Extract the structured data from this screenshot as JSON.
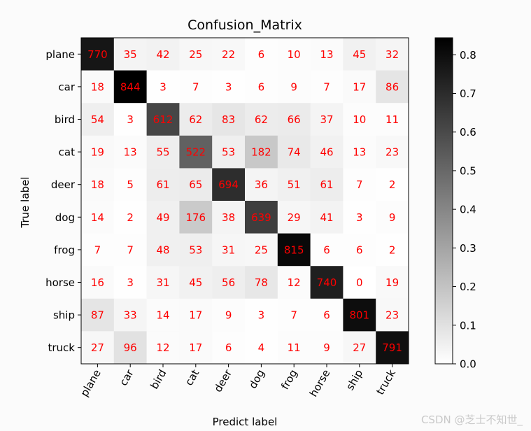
{
  "chart_data": {
    "type": "heatmap",
    "title": "Confusion_Matrix",
    "xlabel": "Predict label",
    "ylabel": "True label",
    "x_categories": [
      "plane",
      "car",
      "bird",
      "cat",
      "deer",
      "dog",
      "frog",
      "horse",
      "ship",
      "truck"
    ],
    "y_categories": [
      "plane",
      "car",
      "bird",
      "cat",
      "deer",
      "dog",
      "frog",
      "horse",
      "ship",
      "truck"
    ],
    "values": [
      [
        770,
        35,
        42,
        25,
        22,
        6,
        10,
        13,
        45,
        32
      ],
      [
        18,
        844,
        3,
        7,
        3,
        6,
        9,
        7,
        17,
        86
      ],
      [
        54,
        3,
        612,
        62,
        83,
        62,
        66,
        37,
        10,
        11
      ],
      [
        19,
        13,
        55,
        522,
        53,
        182,
        74,
        46,
        13,
        23
      ],
      [
        18,
        5,
        61,
        65,
        694,
        36,
        51,
        61,
        7,
        2
      ],
      [
        14,
        2,
        49,
        176,
        38,
        639,
        29,
        41,
        3,
        9
      ],
      [
        7,
        7,
        48,
        53,
        31,
        25,
        815,
        6,
        6,
        2
      ],
      [
        16,
        3,
        31,
        45,
        56,
        78,
        12,
        740,
        0,
        19
      ],
      [
        87,
        33,
        14,
        17,
        9,
        3,
        7,
        6,
        801,
        23
      ],
      [
        27,
        96,
        12,
        17,
        6,
        4,
        11,
        9,
        27,
        791
      ]
    ],
    "colormap": "Greys",
    "value_label_color": "#ff0000",
    "colorbar": {
      "range": [
        0.0,
        0.844
      ],
      "ticks": [
        "0.0",
        "0.1",
        "0.2",
        "0.3",
        "0.4",
        "0.5",
        "0.6",
        "0.7",
        "0.8"
      ]
    }
  },
  "watermark": "CSDN @芝士不知世_"
}
